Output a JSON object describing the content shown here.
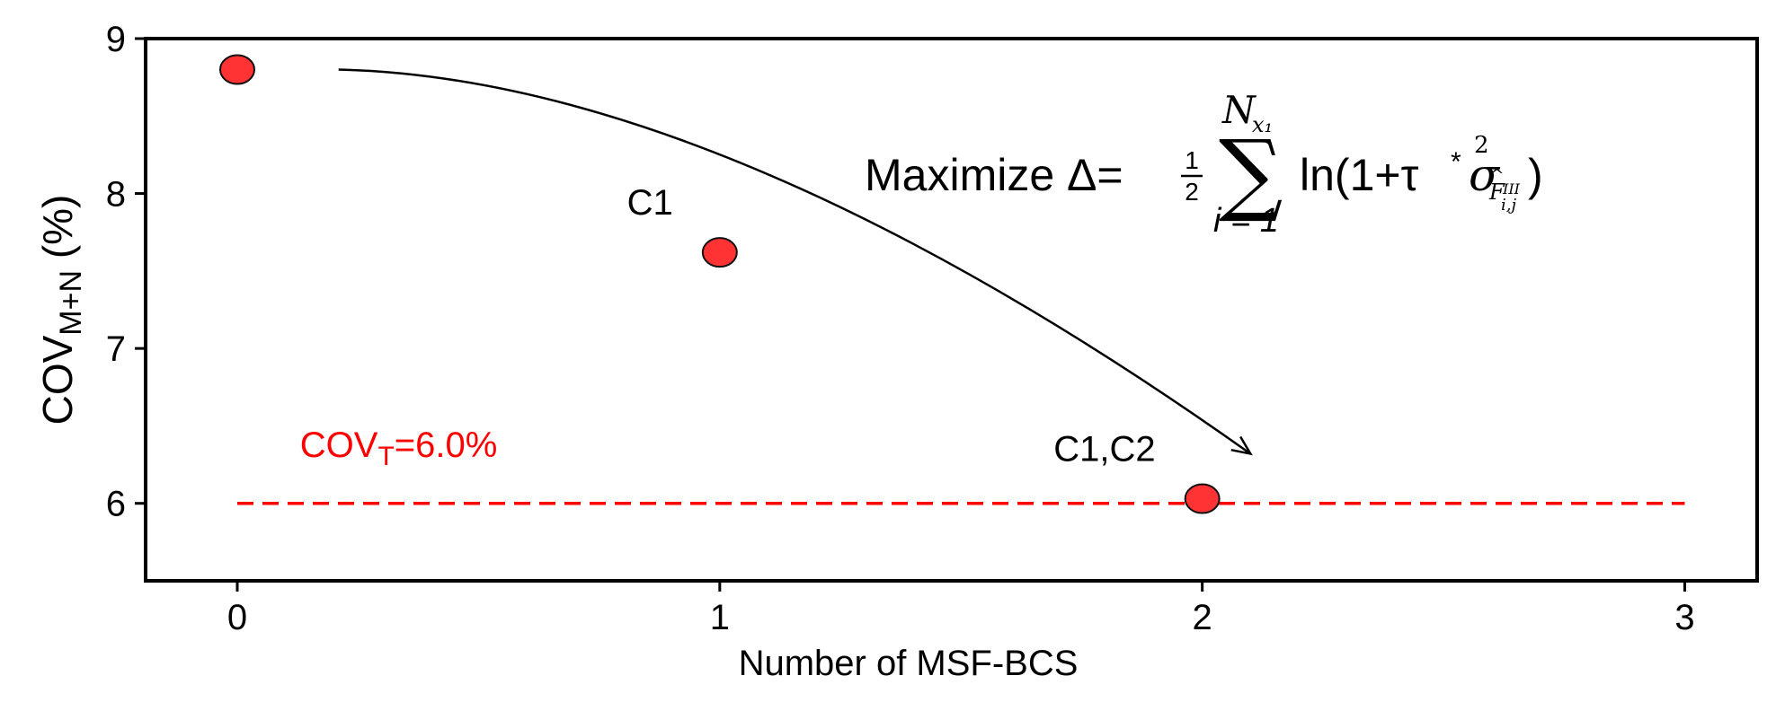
{
  "chart_data": {
    "type": "scatter",
    "xlabel": "Number of MSF-BCS",
    "ylabel": {
      "base": "COV",
      "subscript": "M+N",
      "suffix": " (%)"
    },
    "xlim": [
      -0.19,
      3.15
    ],
    "ylim": [
      5.5,
      9.0
    ],
    "xticks": [
      0,
      1,
      2,
      3
    ],
    "yticks": [
      6,
      7,
      8,
      9
    ],
    "grid": false,
    "points": [
      {
        "x": 0,
        "y": 8.8,
        "label": ""
      },
      {
        "x": 1,
        "y": 7.62,
        "label": "C1"
      },
      {
        "x": 2,
        "y": 6.03,
        "label": "C1,C2"
      }
    ],
    "threshold": {
      "y": 6.0,
      "x_range": [
        0,
        3
      ],
      "label_base": "COV",
      "label_subscript": "T",
      "label_suffix": "=6.0%"
    },
    "arrow": {
      "from": [
        0.21,
        8.8
      ],
      "to": [
        2.1,
        6.32
      ]
    },
    "annotation": {
      "prefix": "Maximize Δ=",
      "frac_num": "1",
      "frac_den": "2",
      "sum_upper": "N",
      "sum_upper_sub": "x₁",
      "sum_lower": "i = 1",
      "body_start": "ln(1+τ",
      "star": "*",
      "sigma": "σ",
      "sq": "2",
      "sigma_sub": "F",
      "sigma_sub_sup": "III",
      "sigma_sub_sub": "i,j",
      "body_end": ")"
    },
    "colors": {
      "marker_fill": "#ff3333",
      "marker_edge": "#111111",
      "threshold": "#ff0000",
      "axes": "#000000"
    }
  }
}
